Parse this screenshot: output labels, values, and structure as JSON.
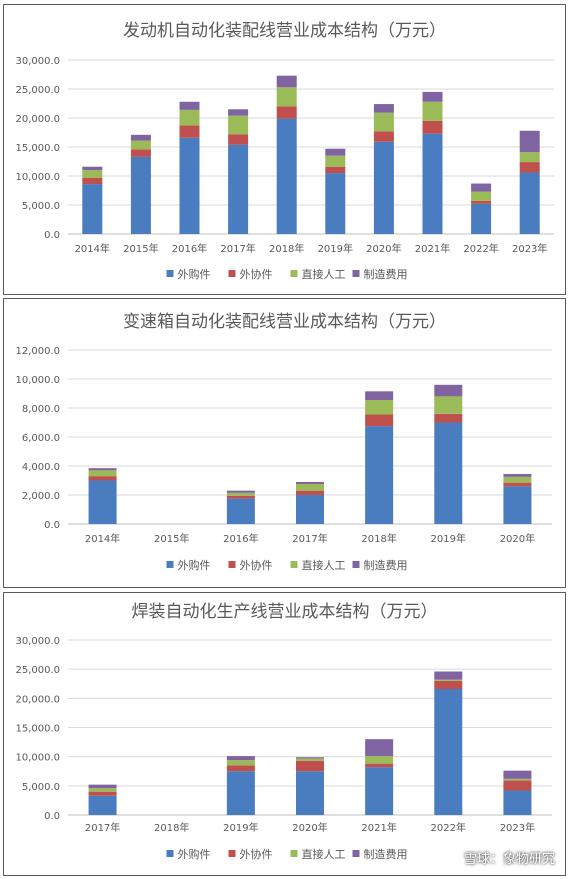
{
  "watermark": "雪球：象物研究",
  "chart_data": [
    {
      "type": "bar",
      "stacked": true,
      "title": "发动机自动化装配线营业成本结构（万元）",
      "categories": [
        "2014年",
        "2015年",
        "2016年",
        "2017年",
        "2018年",
        "2019年",
        "2020年",
        "2021年",
        "2022年",
        "2023年"
      ],
      "ylim": [
        0,
        30000
      ],
      "yticks": [
        0,
        5000,
        10000,
        15000,
        20000,
        25000,
        30000
      ],
      "yticklabels": [
        "0.0",
        "5,000.0",
        "10,000.0",
        "15,000.0",
        "20,000.0",
        "25,000.0",
        "30,000.0"
      ],
      "grid": true,
      "legend": "bottom",
      "series": [
        {
          "name": "外购件",
          "color": "#4a7cc0",
          "values": [
            8600,
            13300,
            16600,
            15400,
            19900,
            10500,
            15900,
            17300,
            5200,
            10600
          ]
        },
        {
          "name": "外协件",
          "color": "#c0504d",
          "values": [
            1100,
            1300,
            2100,
            1800,
            2100,
            1100,
            1800,
            2200,
            500,
            1800
          ]
        },
        {
          "name": "直接人工",
          "color": "#9bbb59",
          "values": [
            1300,
            1500,
            2700,
            3200,
            3300,
            1900,
            3200,
            3300,
            1600,
            1700
          ]
        },
        {
          "name": "制造费用",
          "color": "#8064a2",
          "values": [
            600,
            1000,
            1400,
            1100,
            2000,
            1200,
            1500,
            1700,
            1400,
            3700
          ]
        }
      ]
    },
    {
      "type": "bar",
      "stacked": true,
      "title": "变速箱自动化装配线营业成本结构（万元）",
      "categories": [
        "2014年",
        "2015年",
        "2016年",
        "2017年",
        "2018年",
        "2019年",
        "2020年"
      ],
      "ylim": [
        0,
        12000
      ],
      "yticks": [
        0,
        2000,
        4000,
        6000,
        8000,
        10000,
        12000
      ],
      "yticklabels": [
        "0.0",
        "2,000.0",
        "4,000.0",
        "6,000.0",
        "8,000.0",
        "10,000.0",
        "12,000.0"
      ],
      "grid": true,
      "legend": "bottom",
      "series": [
        {
          "name": "外购件",
          "color": "#4a7cc0",
          "values": [
            3000,
            0,
            1750,
            2000,
            6750,
            7000,
            2600
          ]
        },
        {
          "name": "外协件",
          "color": "#c0504d",
          "values": [
            300,
            0,
            200,
            300,
            800,
            600,
            250
          ]
        },
        {
          "name": "直接人工",
          "color": "#9bbb59",
          "values": [
            400,
            0,
            200,
            450,
            1000,
            1200,
            400
          ]
        },
        {
          "name": "制造费用",
          "color": "#8064a2",
          "values": [
            150,
            0,
            150,
            150,
            600,
            800,
            200
          ]
        }
      ]
    },
    {
      "type": "bar",
      "stacked": true,
      "title": "焊装自动化生产线营业成本结构（万元）",
      "categories": [
        "2017年",
        "2018年",
        "2019年",
        "2020年",
        "2021年",
        "2022年",
        "2023年"
      ],
      "ylim": [
        0,
        30000
      ],
      "yticks": [
        0,
        5000,
        10000,
        15000,
        20000,
        25000,
        30000
      ],
      "yticklabels": [
        "0.0",
        "5,000.0",
        "10,000.0",
        "15,000.0",
        "20,000.0",
        "25,000.0",
        "30,000.0"
      ],
      "grid": true,
      "legend": "bottom",
      "series": [
        {
          "name": "外购件",
          "color": "#4a7cc0",
          "values": [
            3300,
            0,
            7500,
            7500,
            8200,
            21600,
            4200
          ]
        },
        {
          "name": "外协件",
          "color": "#c0504d",
          "values": [
            700,
            0,
            1000,
            1800,
            600,
            1400,
            1700
          ]
        },
        {
          "name": "直接人工",
          "color": "#9bbb59",
          "values": [
            600,
            0,
            900,
            400,
            1300,
            200,
            300
          ]
        },
        {
          "name": "制造费用",
          "color": "#8064a2",
          "values": [
            600,
            0,
            700,
            200,
            2900,
            1400,
            1400
          ]
        }
      ]
    }
  ]
}
